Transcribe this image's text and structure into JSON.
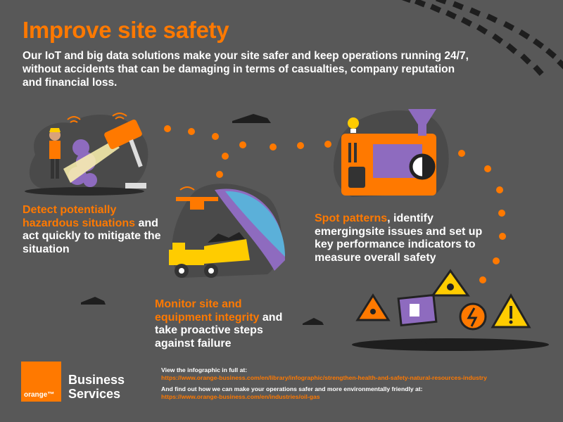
{
  "title": "Improve site safety",
  "intro": "Our IoT and big data solutions make your site safer and keep operations running 24/7, without accidents that can be damaging in terms of casualties, company reputation and financial loss.",
  "features": [
    {
      "highlight": "Detect potentially hazardous situations",
      "rest": "and act quickly to mitigate the situation"
    },
    {
      "highlight": "Monitor site and equipment integrity",
      "rest": "and take proactive steps against failure"
    },
    {
      "highlight": "Spot patterns",
      "rest": ", identify emergingsite issues and set up key performance indicators to measure overall safety"
    }
  ],
  "footer": {
    "line1": "View the infographic in full at:",
    "link1": "https://www.orange-business.com/en/library/infographic/strengthen-health-and-safety-natural-resources-industry",
    "line2": "And find out how we can make your operations safer and more environmentally friendly at:",
    "link2": "https://www.orange-business.com/en/industries/oil-gas"
  },
  "logo": {
    "word": "orange™",
    "brand_line1": "Business",
    "brand_line2": "Services"
  },
  "colors": {
    "accent": "#ff7900",
    "background": "#585858",
    "purple": "#8e6bbf",
    "yellow": "#ffcc00"
  },
  "icons": [
    "tire-track-icon",
    "worker-icon",
    "camera-icon",
    "drone-icon",
    "dump-truck-icon",
    "control-panel-icon",
    "lightbulb-icon",
    "funnel-icon",
    "magnifier-icon",
    "toxic-warning-icon",
    "biohazard-warning-icon",
    "fire-exit-icon",
    "electric-hazard-icon",
    "exclamation-warning-icon"
  ]
}
